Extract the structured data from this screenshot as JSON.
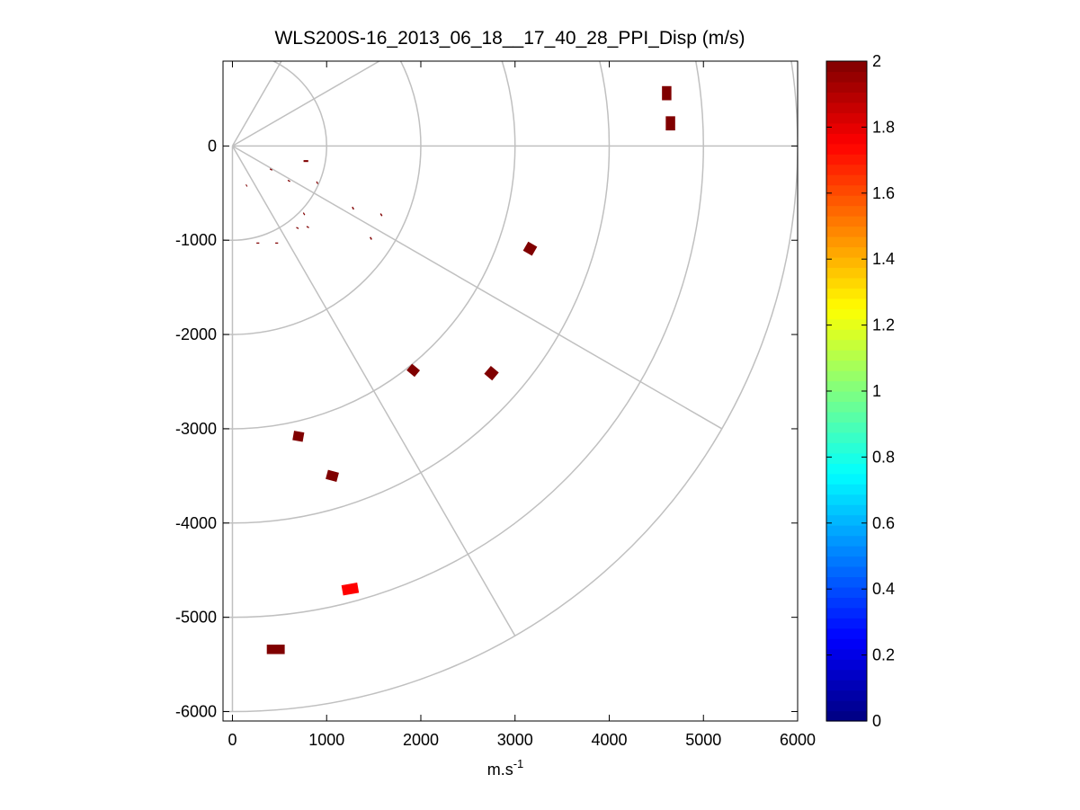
{
  "chart_data": {
    "type": "scatter",
    "title": "WLS200S-16_2013_06_18__17_40_28_PPI_Disp (m/s)",
    "xlabel": "m.s",
    "xlabel_sup": "-1",
    "ylabel": "",
    "xlim": [
      -100,
      6000
    ],
    "ylim": [
      -6100,
      900
    ],
    "xticks": [
      0,
      1000,
      2000,
      3000,
      4000,
      5000,
      6000
    ],
    "yticks": [
      0,
      -1000,
      -2000,
      -3000,
      -4000,
      -5000,
      -6000
    ],
    "xtick_labels": [
      "0",
      "1000",
      "2000",
      "3000",
      "4000",
      "5000",
      "6000"
    ],
    "ytick_labels": [
      "0",
      "-1000",
      "-2000",
      "-3000",
      "-4000",
      "-5000",
      "-6000"
    ],
    "polar_grid": {
      "range_rings": [
        1000,
        2000,
        3000,
        4000,
        5000,
        6000
      ],
      "radial_angles_deg": [
        0,
        30,
        60,
        -30,
        -60,
        -90
      ],
      "color": "#c0c0c0"
    },
    "colorbar": {
      "colormap": "jet",
      "min": 0,
      "max": 2,
      "ticks": [
        0,
        0.2,
        0.4,
        0.6,
        0.8,
        1,
        1.2,
        1.4,
        1.6,
        1.8,
        2
      ],
      "tick_labels": [
        "0",
        "0.2",
        "0.4",
        "0.6",
        "0.8",
        "1",
        "1.2",
        "1.4",
        "1.6",
        "1.8",
        "2"
      ]
    },
    "points": [
      {
        "x": 4610,
        "y": 560,
        "v": 2.0,
        "w": 100,
        "h": 150,
        "rot": 0
      },
      {
        "x": 4650,
        "y": 240,
        "v": 2.0,
        "w": 100,
        "h": 150,
        "rot": 0
      },
      {
        "x": 3160,
        "y": -1090,
        "v": 2.0,
        "w": 110,
        "h": 110,
        "rot": 30
      },
      {
        "x": 1920,
        "y": -2380,
        "v": 2.0,
        "w": 110,
        "h": 90,
        "rot": 40
      },
      {
        "x": 2750,
        "y": -2410,
        "v": 2.0,
        "w": 110,
        "h": 110,
        "rot": 40
      },
      {
        "x": 700,
        "y": -3080,
        "v": 2.0,
        "w": 110,
        "h": 100,
        "rot": 10
      },
      {
        "x": 1060,
        "y": -3500,
        "v": 2.0,
        "w": 120,
        "h": 100,
        "rot": 15
      },
      {
        "x": 1250,
        "y": -4700,
        "v": 1.75,
        "w": 170,
        "h": 110,
        "rot": -10
      },
      {
        "x": 460,
        "y": -5340,
        "v": 2.0,
        "w": 190,
        "h": 100,
        "rot": 0
      },
      {
        "x": 780,
        "y": -160,
        "v": 2.0,
        "w": 50,
        "h": 20,
        "rot": 0
      },
      {
        "x": 410,
        "y": -250,
        "v": 2.0,
        "w": 28,
        "h": 12,
        "rot": 30
      },
      {
        "x": 600,
        "y": -370,
        "v": 2.0,
        "w": 28,
        "h": 12,
        "rot": 30
      },
      {
        "x": 900,
        "y": -390,
        "v": 2.0,
        "w": 28,
        "h": 12,
        "rot": 60
      },
      {
        "x": 150,
        "y": -420,
        "v": 2.0,
        "w": 25,
        "h": 10,
        "rot": 60
      },
      {
        "x": 1280,
        "y": -660,
        "v": 2.0,
        "w": 30,
        "h": 14,
        "rot": 60
      },
      {
        "x": 1580,
        "y": -730,
        "v": 2.0,
        "w": 30,
        "h": 14,
        "rot": 60
      },
      {
        "x": 760,
        "y": -720,
        "v": 2.0,
        "w": 28,
        "h": 12,
        "rot": 60
      },
      {
        "x": 1470,
        "y": -980,
        "v": 2.0,
        "w": 30,
        "h": 14,
        "rot": 60
      },
      {
        "x": 690,
        "y": -870,
        "v": 2.0,
        "w": 28,
        "h": 12,
        "rot": 30
      },
      {
        "x": 800,
        "y": -860,
        "v": 2.0,
        "w": 28,
        "h": 12,
        "rot": 30
      },
      {
        "x": 270,
        "y": -1030,
        "v": 2.0,
        "w": 30,
        "h": 12,
        "rot": 0
      },
      {
        "x": 470,
        "y": -1030,
        "v": 2.0,
        "w": 30,
        "h": 12,
        "rot": 0
      }
    ]
  }
}
